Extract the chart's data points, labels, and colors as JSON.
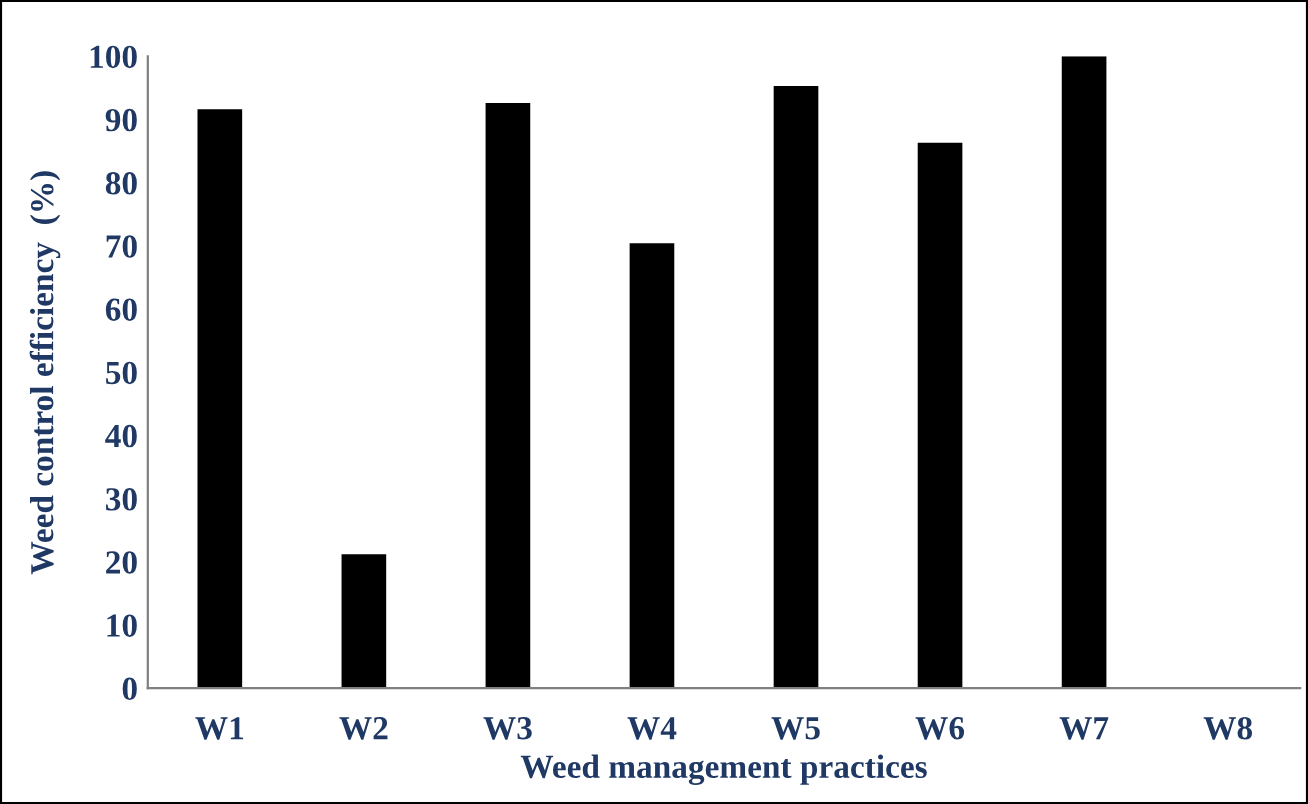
{
  "chart_data": {
    "type": "bar",
    "xlabel": "Weed management practices",
    "ylabel": "Weed control efficiency  (%)",
    "categories": [
      "W1",
      "W2",
      "W3",
      "W4",
      "W5",
      "W6",
      "W7",
      "W8"
    ],
    "values": [
      91.6,
      21.2,
      92.6,
      70.4,
      95.3,
      86.3,
      100,
      0
    ],
    "color": "#000000",
    "ylim": [
      0,
      100
    ],
    "yticks": [
      0,
      10,
      20,
      30,
      40,
      50,
      60,
      70,
      80,
      90,
      100
    ],
    "grid": false,
    "legend": false
  }
}
